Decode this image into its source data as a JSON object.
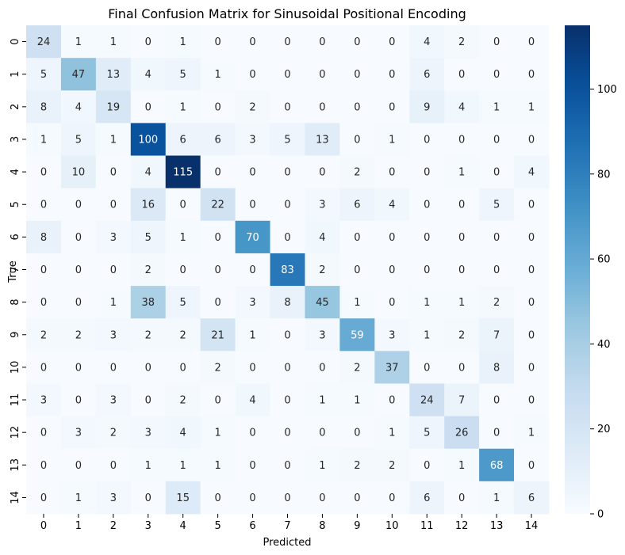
{
  "chart_data": {
    "type": "heatmap",
    "title": "Final Confusion Matrix for Sinusoidal Positional Encoding",
    "xlabel": "Predicted",
    "ylabel": "True",
    "x_categories": [
      "0",
      "1",
      "2",
      "3",
      "4",
      "5",
      "6",
      "7",
      "8",
      "9",
      "10",
      "11",
      "12",
      "13",
      "14"
    ],
    "y_categories": [
      "0",
      "1",
      "2",
      "3",
      "4",
      "5",
      "6",
      "7",
      "8",
      "9",
      "10",
      "11",
      "12",
      "13",
      "14"
    ],
    "values": [
      [
        24,
        1,
        1,
        0,
        1,
        0,
        0,
        0,
        0,
        0,
        0,
        4,
        2,
        0,
        0
      ],
      [
        5,
        47,
        13,
        4,
        5,
        1,
        0,
        0,
        0,
        0,
        0,
        6,
        0,
        0,
        0
      ],
      [
        8,
        4,
        19,
        0,
        1,
        0,
        2,
        0,
        0,
        0,
        0,
        9,
        4,
        1,
        1
      ],
      [
        1,
        5,
        1,
        100,
        6,
        6,
        3,
        5,
        13,
        0,
        1,
        0,
        0,
        0,
        0
      ],
      [
        0,
        10,
        0,
        4,
        115,
        0,
        0,
        0,
        0,
        2,
        0,
        0,
        1,
        0,
        4
      ],
      [
        0,
        0,
        0,
        16,
        0,
        22,
        0,
        0,
        3,
        6,
        4,
        0,
        0,
        5,
        0
      ],
      [
        8,
        0,
        3,
        5,
        1,
        0,
        70,
        0,
        4,
        0,
        0,
        0,
        0,
        0,
        0
      ],
      [
        0,
        0,
        0,
        2,
        0,
        0,
        0,
        83,
        2,
        0,
        0,
        0,
        0,
        0,
        0
      ],
      [
        0,
        0,
        1,
        38,
        5,
        0,
        3,
        8,
        45,
        1,
        0,
        1,
        1,
        2,
        0
      ],
      [
        2,
        2,
        3,
        2,
        2,
        21,
        1,
        0,
        3,
        59,
        3,
        1,
        2,
        7,
        0
      ],
      [
        0,
        0,
        0,
        0,
        0,
        2,
        0,
        0,
        0,
        2,
        37,
        0,
        0,
        8,
        0
      ],
      [
        3,
        0,
        3,
        0,
        2,
        0,
        4,
        0,
        1,
        1,
        0,
        24,
        7,
        0,
        0
      ],
      [
        0,
        3,
        2,
        3,
        4,
        1,
        0,
        0,
        0,
        0,
        1,
        5,
        26,
        0,
        1
      ],
      [
        0,
        0,
        0,
        1,
        1,
        1,
        0,
        0,
        1,
        2,
        2,
        0,
        1,
        68,
        0
      ],
      [
        0,
        1,
        3,
        0,
        15,
        0,
        0,
        0,
        0,
        0,
        0,
        6,
        0,
        1,
        6
      ]
    ],
    "colormap": "Blues",
    "vmin": 0,
    "vmax": 115,
    "colorbar_ticks": [
      0,
      20,
      40,
      60,
      80,
      100
    ],
    "grid": false,
    "legend": "colorbar-right"
  }
}
